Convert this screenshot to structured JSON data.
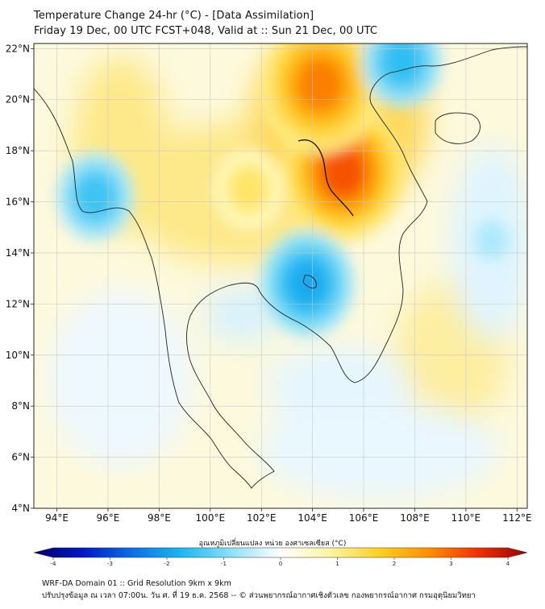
{
  "title": {
    "line1": "Temperature Change 24-hr (°C) - [Data Assimilation]",
    "line2": "Friday 19 Dec, 00 UTC FCST+048, Valid at :: Sun 21 Dec, 00 UTC"
  },
  "map": {
    "lon_labels": [
      "94°E",
      "96°E",
      "98°E",
      "100°E",
      "102°E",
      "104°E",
      "106°E",
      "108°E",
      "110°E",
      "112°E"
    ],
    "lat_labels": [
      "22°N",
      "20°N",
      "18°N",
      "16°N",
      "14°N",
      "12°N",
      "10°N",
      "8°N",
      "6°N",
      "4°N"
    ],
    "lon_values": [
      94,
      96,
      98,
      100,
      102,
      104,
      106,
      108,
      110,
      112
    ],
    "lat_values": [
      22,
      20,
      18,
      16,
      14,
      12,
      10,
      8,
      6,
      4
    ],
    "extent": {
      "lon_min": 93.1,
      "lon_max": 112.4,
      "lat_min": 4,
      "lat_max": 22.2
    },
    "anomalies": [
      {
        "label": "warm-northeast-thailand-laos",
        "lon": 105.2,
        "lat": 17.2,
        "value": 3.0
      },
      {
        "label": "warm-northern-laos",
        "lon": 104.3,
        "lat": 20.6,
        "value": 2.6
      },
      {
        "label": "warm-central-thailand",
        "lon": 101.5,
        "lat": 16.5,
        "value": 1.2
      },
      {
        "label": "cold-cambodia",
        "lon": 103.8,
        "lat": 12.8,
        "value": -1.8
      },
      {
        "label": "cold-gulf-of-tonkin",
        "lon": 107.5,
        "lat": 21.5,
        "value": -1.5
      },
      {
        "label": "cold-myanmar-coast",
        "lon": 95.5,
        "lat": 16.2,
        "value": -1.4
      },
      {
        "label": "cold-south-china-sea",
        "lon": 111,
        "lat": 14.5,
        "value": -0.6
      }
    ]
  },
  "colorbar": {
    "label": "อุณหภูมิเปลี่ยนแปลง หน่วย องศาเซลเซียส (°C)",
    "ticks": [
      "-4",
      "-3",
      "-2",
      "-1",
      "0",
      "1",
      "2",
      "3",
      "4"
    ],
    "tick_values": [
      -4,
      -3,
      -2,
      -1,
      0,
      1,
      2,
      3,
      4
    ],
    "colors": [
      "#00006a",
      "#0018c8",
      "#0a70e6",
      "#1ab8f0",
      "#8ee0f8",
      "#ffffff",
      "#fff4a0",
      "#ffd020",
      "#ff9000",
      "#f03000",
      "#9a0000"
    ]
  },
  "footer": {
    "line1": "WRF-DA Domain 01 :: Grid Resolution 9km x 9km",
    "line2": "ปรับปรุงข้อมูล ณ เวลา 07:00น. วัน ศ. ที่ 19 ธ.ค. 2568 -- © ส่วนพยากรณ์อากาศเชิงตัวเลข กองพยากรณ์อากาศ กรมอุตุนิยมวิทยา"
  }
}
